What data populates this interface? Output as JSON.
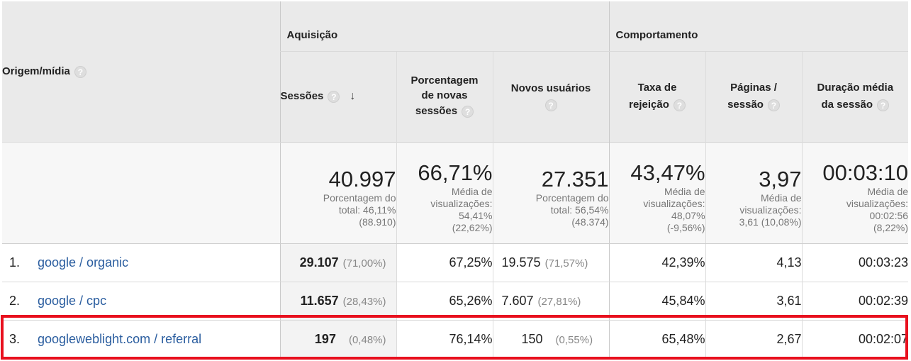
{
  "header": {
    "dimension_label": "Origem/mídia",
    "groups": {
      "acquisition": "Aquisição",
      "behavior": "Comportamento"
    },
    "help_glyph": "?",
    "sort_glyph": "↓",
    "metrics": {
      "sessions": "Sessões",
      "new_sessions_pct_l1": "Porcentagem",
      "new_sessions_pct_l2": "de novas",
      "new_sessions_pct_l3": "sessões",
      "new_users": "Novos usuários",
      "bounce_l1": "Taxa de",
      "bounce_l2": "rejeição",
      "pages_l1": "Páginas /",
      "pages_l2": "sessão",
      "duration_l1": "Duração média",
      "duration_l2": "da sessão"
    }
  },
  "totals": {
    "sessions": {
      "value": "40.997",
      "sub1": "Porcentagem do",
      "sub2": "total: 46,11%",
      "sub3": "(88.910)"
    },
    "new_sessions_pct": {
      "value": "66,71%",
      "sub1": "Média de",
      "sub2": "visualizações:",
      "sub3": "54,41%",
      "sub4": "(22,62%)"
    },
    "new_users": {
      "value": "27.351",
      "sub1": "Porcentagem do",
      "sub2": "total: 56,54%",
      "sub3": "(48.374)"
    },
    "bounce": {
      "value": "43,47%",
      "sub1": "Média de",
      "sub2": "visualizações:",
      "sub3": "48,07%",
      "sub4": "(-9,56%)"
    },
    "pages": {
      "value": "3,97",
      "sub1": "Média de",
      "sub2": "visualizações:",
      "sub3": "3,61 (10,08%)"
    },
    "duration": {
      "value": "00:03:10",
      "sub1": "Média de",
      "sub2": "visualizações:",
      "sub3": "00:02:56",
      "sub4": "(8,22%)"
    }
  },
  "rows": [
    {
      "index": "1.",
      "source": "google / organic",
      "sessions": "29.107",
      "sessions_pct": "(71,00%)",
      "new_sessions_pct": "67,25%",
      "new_users": "19.575",
      "new_users_pct": "(71,57%)",
      "bounce": "42,39%",
      "pages": "4,13",
      "duration": "00:03:23"
    },
    {
      "index": "2.",
      "source": "google / cpc",
      "sessions": "11.657",
      "sessions_pct": "(28,43%)",
      "new_sessions_pct": "65,26%",
      "new_users": "7.607",
      "new_users_pct": "(27,81%)",
      "bounce": "45,84%",
      "pages": "3,61",
      "duration": "00:02:39"
    },
    {
      "index": "3.",
      "source": "googleweblight.com / referral",
      "sessions": "197",
      "sessions_pct": "(0,48%)",
      "new_sessions_pct": "76,14%",
      "new_users": "150",
      "new_users_pct": "(0,55%)",
      "bounce": "65,48%",
      "pages": "2,67",
      "duration": "00:02:07"
    }
  ],
  "colors": {
    "highlight": "#e8101e",
    "link": "#2a5d9f",
    "header_bg": "#eaeaea"
  }
}
